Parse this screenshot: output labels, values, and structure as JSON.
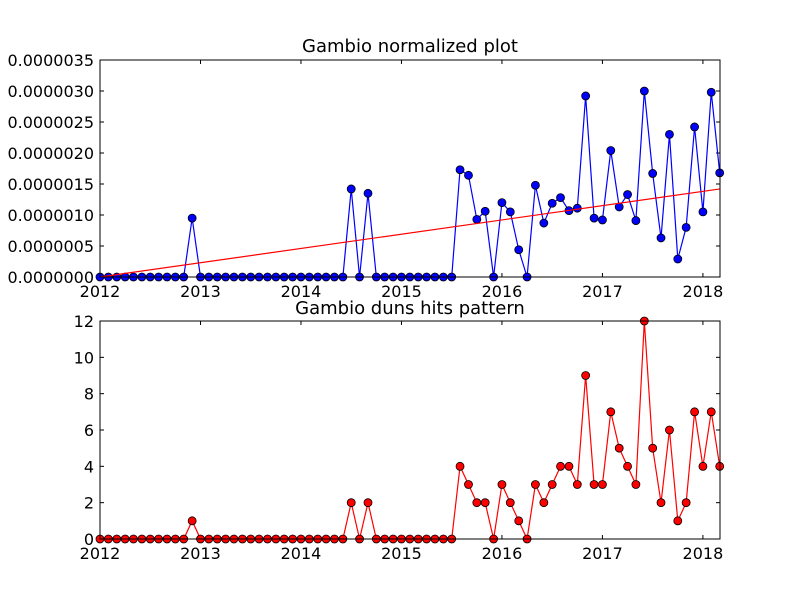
{
  "chart_data": [
    {
      "type": "line",
      "title": "Gambio normalized plot",
      "xlabel": "",
      "ylabel": "",
      "xlim": [
        2012.0,
        2018.17
      ],
      "ylim": [
        0,
        3.5e-06
      ],
      "x_ticks": [
        2012,
        2013,
        2014,
        2015,
        2016,
        2017,
        2018
      ],
      "x_tick_labels": [
        "2012",
        "2013",
        "2014",
        "2015",
        "2016",
        "2017",
        "2018"
      ],
      "y_ticks": [
        0,
        5e-07,
        1e-06,
        1.5e-06,
        2e-06,
        2.5e-06,
        3e-06,
        3.5e-06
      ],
      "y_tick_labels": [
        "0.0000000",
        "0.0000005",
        "0.0000010",
        "0.0000015",
        "0.0000020",
        "0.0000025",
        "0.0000030",
        "0.0000035"
      ],
      "grid": false,
      "series": [
        {
          "color": "#0000ff",
          "marker": "circle",
          "x": [
            2012.0,
            2012.083,
            2012.167,
            2012.25,
            2012.333,
            2012.417,
            2012.5,
            2012.583,
            2012.667,
            2012.75,
            2012.833,
            2012.917,
            2013.0,
            2013.083,
            2013.167,
            2013.25,
            2013.333,
            2013.417,
            2013.5,
            2013.583,
            2013.667,
            2013.75,
            2013.833,
            2013.917,
            2014.0,
            2014.083,
            2014.167,
            2014.25,
            2014.333,
            2014.417,
            2014.5,
            2014.583,
            2014.667,
            2014.75,
            2014.833,
            2014.917,
            2015.0,
            2015.083,
            2015.167,
            2015.25,
            2015.333,
            2015.417,
            2015.5,
            2015.583,
            2015.667,
            2015.75,
            2015.833,
            2015.917,
            2016.0,
            2016.083,
            2016.167,
            2016.25,
            2016.333,
            2016.417,
            2016.5,
            2016.583,
            2016.667,
            2016.75,
            2016.833,
            2016.917,
            2017.0,
            2017.083,
            2017.167,
            2017.25,
            2017.333,
            2017.417,
            2017.5,
            2017.583,
            2017.667,
            2017.75,
            2017.833,
            2017.917,
            2018.0,
            2018.083,
            2018.167
          ],
          "y": [
            0,
            0,
            0,
            0,
            0,
            0,
            0,
            0,
            0,
            0,
            0,
            9.5e-07,
            0,
            0,
            0,
            0,
            0,
            0,
            0,
            0,
            0,
            0,
            0,
            0,
            0,
            0,
            0,
            0,
            0,
            0,
            1.42e-06,
            0,
            1.35e-06,
            0,
            0,
            0,
            0,
            0,
            0,
            0,
            0,
            0,
            0,
            1.73e-06,
            1.64e-06,
            9.3e-07,
            1.06e-06,
            0,
            1.2e-06,
            1.05e-06,
            4.4e-07,
            0,
            1.48e-06,
            8.7e-07,
            1.19e-06,
            1.28e-06,
            1.07e-06,
            1.11e-06,
            2.92e-06,
            9.5e-07,
            9.2e-07,
            2.04e-06,
            1.13e-06,
            1.33e-06,
            9.1e-07,
            3e-06,
            1.67e-06,
            6.3e-07,
            2.3e-06,
            2.9e-07,
            8e-07,
            2.42e-06,
            1.05e-06,
            2.98e-06,
            1.68e-06
          ]
        },
        {
          "color": "#ff0000",
          "marker": "none",
          "x": [
            2012.0,
            2018.17
          ],
          "y": [
            0,
            1.42e-06
          ]
        }
      ]
    },
    {
      "type": "line",
      "title": "Gambio duns hits pattern",
      "xlabel": "",
      "ylabel": "",
      "xlim": [
        2012.0,
        2018.17
      ],
      "ylim": [
        0,
        12
      ],
      "x_ticks": [
        2012,
        2013,
        2014,
        2015,
        2016,
        2017,
        2018
      ],
      "x_tick_labels": [
        "2012",
        "2013",
        "2014",
        "2015",
        "2016",
        "2017",
        "2018"
      ],
      "y_ticks": [
        0,
        2,
        4,
        6,
        8,
        10,
        12
      ],
      "y_tick_labels": [
        "0",
        "2",
        "4",
        "6",
        "8",
        "10",
        "12"
      ],
      "grid": false,
      "series": [
        {
          "color": "#ff0000",
          "marker": "circle",
          "x": [
            2012.0,
            2012.083,
            2012.167,
            2012.25,
            2012.333,
            2012.417,
            2012.5,
            2012.583,
            2012.667,
            2012.75,
            2012.833,
            2012.917,
            2013.0,
            2013.083,
            2013.167,
            2013.25,
            2013.333,
            2013.417,
            2013.5,
            2013.583,
            2013.667,
            2013.75,
            2013.833,
            2013.917,
            2014.0,
            2014.083,
            2014.167,
            2014.25,
            2014.333,
            2014.417,
            2014.5,
            2014.583,
            2014.667,
            2014.75,
            2014.833,
            2014.917,
            2015.0,
            2015.083,
            2015.167,
            2015.25,
            2015.333,
            2015.417,
            2015.5,
            2015.583,
            2015.667,
            2015.75,
            2015.833,
            2015.917,
            2016.0,
            2016.083,
            2016.167,
            2016.25,
            2016.333,
            2016.417,
            2016.5,
            2016.583,
            2016.667,
            2016.75,
            2016.833,
            2016.917,
            2017.0,
            2017.083,
            2017.167,
            2017.25,
            2017.333,
            2017.417,
            2017.5,
            2017.583,
            2017.667,
            2017.75,
            2017.833,
            2017.917,
            2018.0,
            2018.083,
            2018.167
          ],
          "y": [
            0,
            0,
            0,
            0,
            0,
            0,
            0,
            0,
            0,
            0,
            0,
            1,
            0,
            0,
            0,
            0,
            0,
            0,
            0,
            0,
            0,
            0,
            0,
            0,
            0,
            0,
            0,
            0,
            0,
            0,
            2,
            0,
            2,
            0,
            0,
            0,
            0,
            0,
            0,
            0,
            0,
            0,
            0,
            4,
            3,
            2,
            2,
            0,
            3,
            2,
            1,
            0,
            3,
            2,
            3,
            4,
            4,
            3,
            9,
            3,
            3,
            7,
            5,
            4,
            3,
            12,
            5,
            2,
            6,
            1,
            2,
            7,
            4,
            7,
            4
          ]
        }
      ]
    }
  ]
}
